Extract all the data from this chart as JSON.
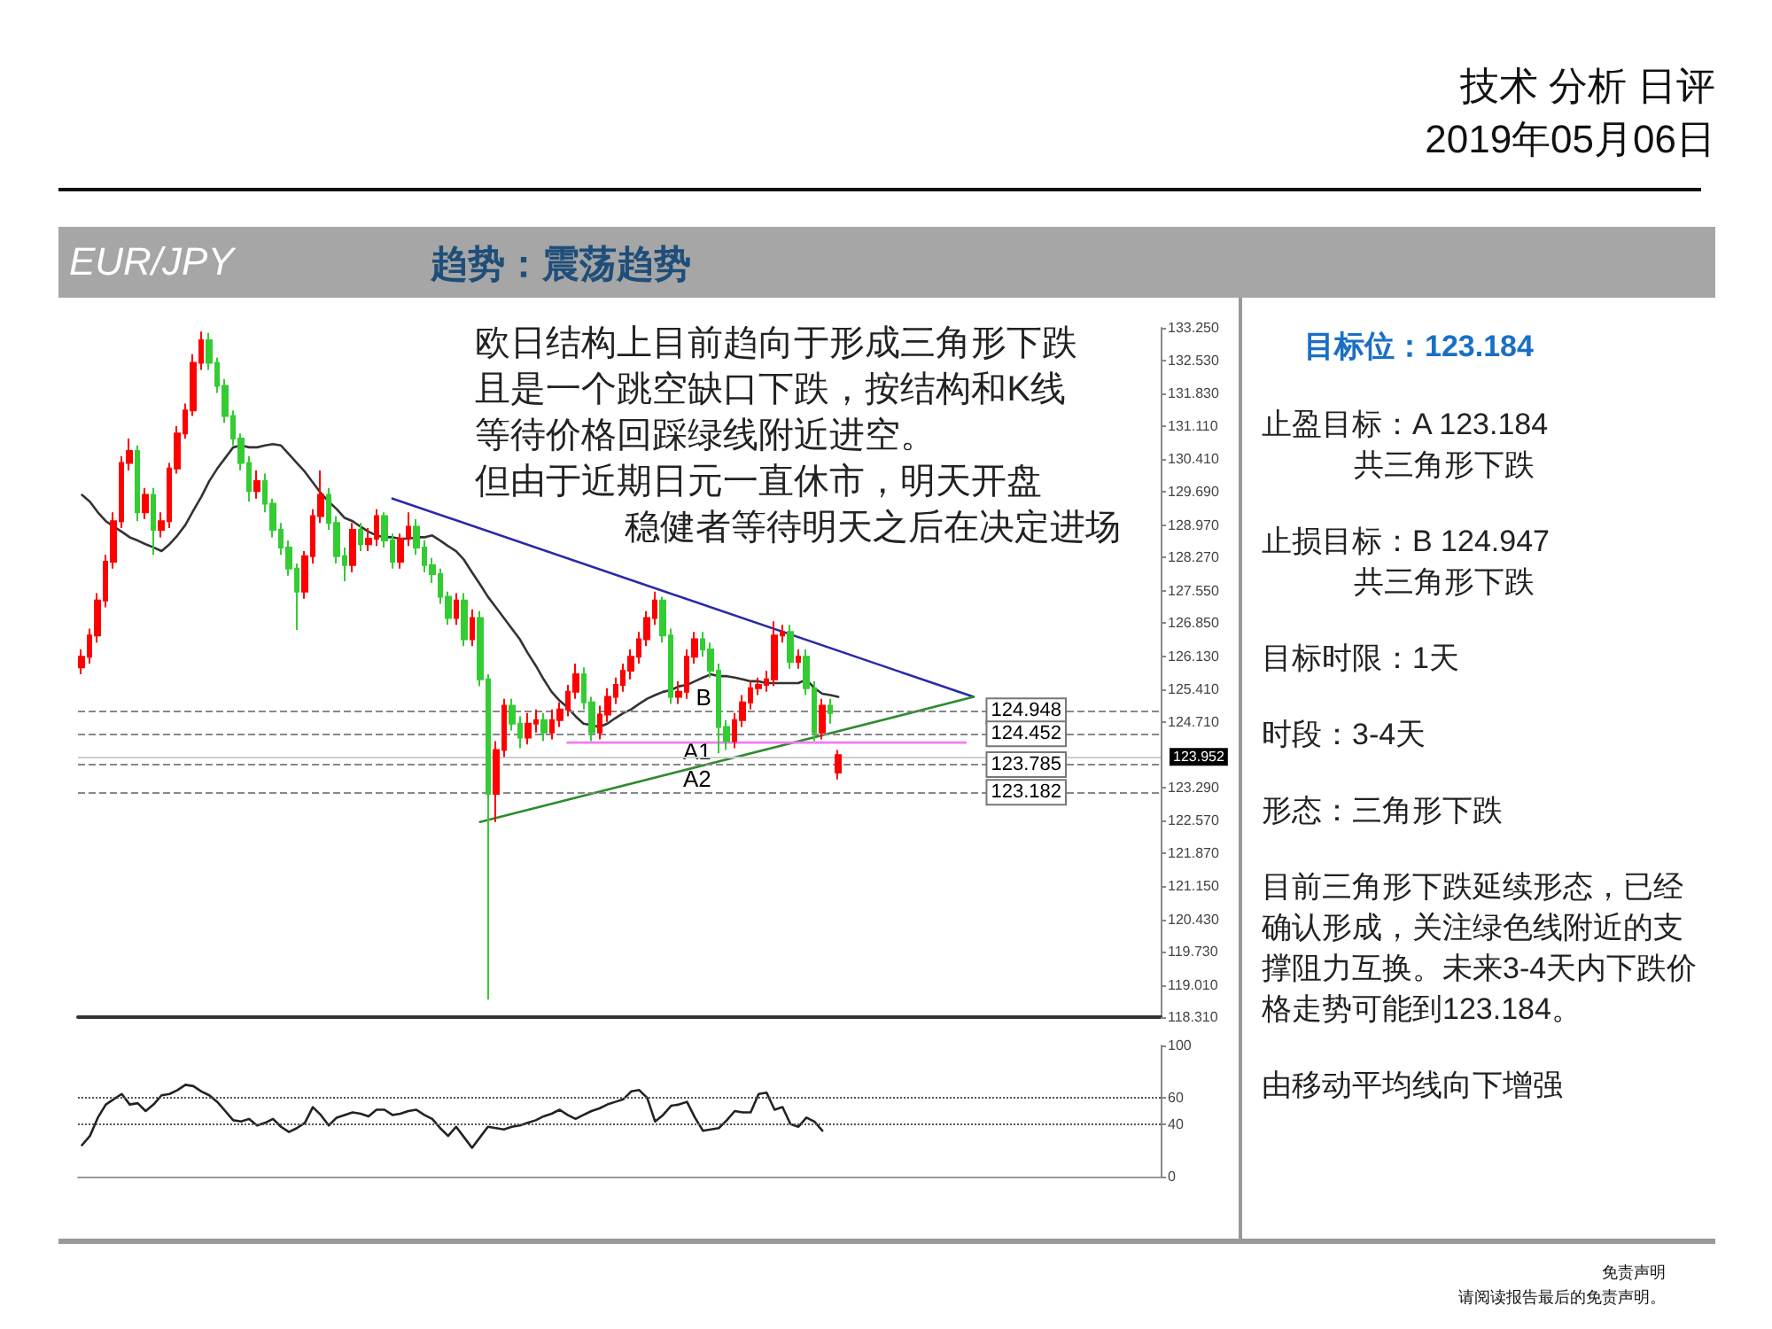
{
  "chart_data": [
    {
      "type": "candlestick",
      "title": "EUR/JPY",
      "subtitle": "趋势：震荡趋势",
      "categories": [
        null,
        null,
        null,
        null,
        null,
        null,
        null,
        null,
        null,
        null,
        null,
        null,
        null,
        null,
        null,
        null,
        null,
        null,
        null,
        null,
        null,
        null,
        null,
        null,
        null,
        null,
        null,
        null,
        null,
        null,
        null,
        null,
        null,
        null,
        null,
        null,
        null,
        null,
        null,
        null,
        null,
        null,
        null,
        null,
        null,
        null,
        null,
        null,
        null,
        null,
        null,
        null,
        null,
        null,
        null,
        null,
        null,
        null,
        null,
        null,
        null,
        null,
        null,
        null,
        null,
        null,
        null,
        null,
        null,
        null,
        null,
        null,
        null,
        null,
        null,
        null,
        null,
        null,
        null,
        null,
        null,
        null,
        null,
        null,
        null,
        null,
        null,
        null,
        null,
        null,
        null,
        null,
        null,
        null,
        null,
        null,
        null,
        null,
        null,
        null,
        null,
        null,
        null,
        null,
        null,
        null,
        null,
        null,
        null,
        null,
        null,
        null,
        null,
        null,
        null,
        null,
        null,
        null,
        null,
        null,
        null,
        null,
        null,
        null,
        null,
        null,
        null,
        null,
        null,
        null,
        null,
        null,
        null,
        null,
        null,
        null
      ],
      "ohlc": [
        [
          125.89,
          126.28,
          125.74,
          126.12
        ],
        [
          126.12,
          126.73,
          125.97,
          126.58
        ],
        [
          126.58,
          127.5,
          126.43,
          127.34
        ],
        [
          127.34,
          128.33,
          127.19,
          128.18
        ],
        [
          128.18,
          129.25,
          128.03,
          129.06
        ],
        [
          129.06,
          130.47,
          128.91,
          130.32
        ],
        [
          130.32,
          130.85,
          130.16,
          130.58
        ],
        [
          130.58,
          130.7,
          129.06,
          129.25
        ],
        [
          129.25,
          129.78,
          129.1,
          129.63
        ],
        [
          129.63,
          129.78,
          128.33,
          128.87
        ],
        [
          128.87,
          129.25,
          128.71,
          129.06
        ],
        [
          129.06,
          130.32,
          128.91,
          130.2
        ],
        [
          130.2,
          131.12,
          130.09,
          130.96
        ],
        [
          130.96,
          131.61,
          130.85,
          131.46
        ],
        [
          131.46,
          132.68,
          131.34,
          132.49
        ],
        [
          132.49,
          133.17,
          132.34,
          132.98
        ],
        [
          132.98,
          133.14,
          132.34,
          132.49
        ],
        [
          132.49,
          132.6,
          131.84,
          131.99
        ],
        [
          131.99,
          132.14,
          131.19,
          131.34
        ],
        [
          131.34,
          131.46,
          130.7,
          130.85
        ],
        [
          130.85,
          130.96,
          130.16,
          130.32
        ],
        [
          130.32,
          130.47,
          129.48,
          129.71
        ],
        [
          129.71,
          130.16,
          129.55,
          129.93
        ],
        [
          129.93,
          130.09,
          129.25,
          129.44
        ],
        [
          129.44,
          129.55,
          128.71,
          128.87
        ],
        [
          128.87,
          129.02,
          128.33,
          128.49
        ],
        [
          128.49,
          128.64,
          127.88,
          128.03
        ],
        [
          128.03,
          128.14,
          126.7,
          127.53
        ],
        [
          127.53,
          128.41,
          127.38,
          128.3
        ],
        [
          128.3,
          129.32,
          128.14,
          129.17
        ],
        [
          129.17,
          130.16,
          129.02,
          129.63
        ],
        [
          129.63,
          129.78,
          128.87,
          129.02
        ],
        [
          129.02,
          129.17,
          128.14,
          128.3
        ],
        [
          128.3,
          128.49,
          127.76,
          128.11
        ],
        [
          128.11,
          129.02,
          127.95,
          128.87
        ],
        [
          128.87,
          129.02,
          128.41,
          128.56
        ],
        [
          128.56,
          128.91,
          128.41,
          128.68
        ],
        [
          128.68,
          129.32,
          128.52,
          129.17
        ],
        [
          129.17,
          129.25,
          128.49,
          128.64
        ],
        [
          128.64,
          128.79,
          128.03,
          128.18
        ],
        [
          128.18,
          128.79,
          128.03,
          128.68
        ],
        [
          128.68,
          129.25,
          128.52,
          128.94
        ],
        [
          128.94,
          129.1,
          128.33,
          128.49
        ],
        [
          128.49,
          128.64,
          127.95,
          128.11
        ],
        [
          128.11,
          128.26,
          127.72,
          127.91
        ],
        [
          127.91,
          128.03,
          127.27,
          127.42
        ],
        [
          127.42,
          127.53,
          126.81,
          126.96
        ],
        [
          126.96,
          127.5,
          126.81,
          127.34
        ],
        [
          127.34,
          127.5,
          126.35,
          126.5
        ],
        [
          126.5,
          127.15,
          126.35,
          126.96
        ],
        [
          126.96,
          127.11,
          125.48,
          125.63
        ],
        [
          125.63,
          125.74,
          118.69,
          123.15
        ],
        [
          123.15,
          124.29,
          122.54,
          124.1
        ],
        [
          124.1,
          125.21,
          123.95,
          125.06
        ],
        [
          125.06,
          125.21,
          124.52,
          124.67
        ],
        [
          124.67,
          124.83,
          124.14,
          124.37
        ],
        [
          124.37,
          124.9,
          124.22,
          124.67
        ],
        [
          124.67,
          124.98,
          124.48,
          124.75
        ],
        [
          124.75,
          124.9,
          124.29,
          124.48
        ],
        [
          124.48,
          124.98,
          124.33,
          124.75
        ],
        [
          124.75,
          125.13,
          124.6,
          124.98
        ],
        [
          124.98,
          125.51,
          124.83,
          125.36
        ],
        [
          125.36,
          125.97,
          125.21,
          125.74
        ],
        [
          125.74,
          125.89,
          124.98,
          125.13
        ],
        [
          125.13,
          125.25,
          124.29,
          124.48
        ],
        [
          124.48,
          125.06,
          124.33,
          124.87
        ],
        [
          124.87,
          125.44,
          124.71,
          125.25
        ],
        [
          125.25,
          125.67,
          125.1,
          125.51
        ],
        [
          125.51,
          125.97,
          125.36,
          125.82
        ],
        [
          125.82,
          126.28,
          125.63,
          126.12
        ],
        [
          126.12,
          126.66,
          125.97,
          126.5
        ],
        [
          126.5,
          127.11,
          126.35,
          126.96
        ],
        [
          126.96,
          127.53,
          126.81,
          127.34
        ],
        [
          127.34,
          127.42,
          126.43,
          126.58
        ],
        [
          126.58,
          126.73,
          125.1,
          125.25
        ],
        [
          125.25,
          125.59,
          125.1,
          125.36
        ],
        [
          125.36,
          126.28,
          125.21,
          126.12
        ],
        [
          126.12,
          126.66,
          125.97,
          126.5
        ],
        [
          126.5,
          126.66,
          126.12,
          126.28
        ],
        [
          126.28,
          126.43,
          125.67,
          125.82
        ],
        [
          125.82,
          125.97,
          124.03,
          124.6
        ],
        [
          124.6,
          124.75,
          124.1,
          124.29
        ],
        [
          124.29,
          124.9,
          124.14,
          124.75
        ],
        [
          124.75,
          125.29,
          124.6,
          125.13
        ],
        [
          125.13,
          125.59,
          124.98,
          125.44
        ],
        [
          125.44,
          125.67,
          125.29,
          125.51
        ],
        [
          125.51,
          125.82,
          125.36,
          125.63
        ],
        [
          125.63,
          126.89,
          125.48,
          126.58
        ],
        [
          126.58,
          126.81,
          126.43,
          126.66
        ],
        [
          126.66,
          126.81,
          125.86,
          126.01
        ],
        [
          126.01,
          126.28,
          125.86,
          126.12
        ],
        [
          126.12,
          126.28,
          125.29,
          125.44
        ],
        [
          125.44,
          125.59,
          124.29,
          124.48
        ],
        [
          124.48,
          125.21,
          124.33,
          125.06
        ],
        [
          125.06,
          125.21,
          124.67,
          124.9
        ],
        [
          123.61,
          124.1,
          123.46,
          123.99
        ],
        null,
        null,
        null,
        null,
        null,
        null,
        null,
        null,
        null,
        null,
        null,
        null,
        null,
        null,
        null,
        null,
        null,
        null,
        null,
        null,
        null,
        null,
        null,
        null,
        null,
        null,
        null,
        null,
        null,
        null,
        null,
        null,
        null,
        null,
        null,
        null,
        null,
        null,
        null,
        null
      ],
      "colors": [
        "#ff0000",
        "#ff0000",
        "#ff0000",
        "#ff0000",
        "#ff0000",
        "#ff0000",
        "#ff0000",
        "#33cc33",
        "#ff0000",
        "#33cc33",
        "#ff0000",
        "#ff0000",
        "#ff0000",
        "#ff0000",
        "#ff0000",
        "#ff0000",
        "#33cc33",
        "#33cc33",
        "#33cc33",
        "#33cc33",
        "#33cc33",
        "#33cc33",
        "#ff0000",
        "#33cc33",
        "#33cc33",
        "#33cc33",
        "#33cc33",
        "#33cc33",
        "#ff0000",
        "#ff0000",
        "#ff0000",
        "#33cc33",
        "#33cc33",
        "#33cc33",
        "#ff0000",
        "#33cc33",
        "#ff0000",
        "#ff0000",
        "#33cc33",
        "#33cc33",
        "#ff0000",
        "#ff0000",
        "#33cc33",
        "#33cc33",
        "#33cc33",
        "#33cc33",
        "#33cc33",
        "#ff0000",
        "#33cc33",
        "#ff0000",
        "#33cc33",
        "#33cc33",
        "#ff0000",
        "#ff0000",
        "#33cc33",
        "#33cc33",
        "#ff0000",
        "#ff0000",
        "#33cc33",
        "#ff0000",
        "#ff0000",
        "#ff0000",
        "#ff0000",
        "#33cc33",
        "#33cc33",
        "#ff0000",
        "#ff0000",
        "#ff0000",
        "#ff0000",
        "#ff0000",
        "#ff0000",
        "#ff0000",
        "#ff0000",
        "#33cc33",
        "#33cc33",
        "#ff0000",
        "#ff0000",
        "#ff0000",
        "#33cc33",
        "#33cc33",
        "#33cc33",
        "#33cc33",
        "#ff0000",
        "#ff0000",
        "#ff0000",
        "#ff0000",
        "#ff0000",
        "#ff0000",
        "#ff0000",
        "#33cc33",
        "#ff0000",
        "#33cc33",
        "#33cc33",
        "#ff0000",
        "#33cc33",
        "#ff0000",
        null,
        null,
        null,
        null,
        null,
        null,
        null,
        null,
        null,
        null,
        null,
        null,
        null,
        null,
        null,
        null,
        null,
        null,
        null,
        null,
        null,
        null,
        null,
        null,
        null,
        null,
        null,
        null,
        null,
        null,
        null,
        null,
        null,
        null,
        null,
        null,
        null,
        null,
        null,
        null
      ],
      "series": [
        {
          "type": "line",
          "color": "#333333",
          "values": [
            129.63,
            129.48,
            129.25,
            129.06,
            128.94,
            128.83,
            128.71,
            128.64,
            128.56,
            128.49,
            128.41,
            128.56,
            128.75,
            128.98,
            129.29,
            129.59,
            129.93,
            130.2,
            130.43,
            130.66,
            130.7,
            130.66,
            130.66,
            130.7,
            130.73,
            130.7,
            130.51,
            130.32,
            130.13,
            129.9,
            129.67,
            129.48,
            129.32,
            129.13,
            129.06,
            128.94,
            128.83,
            128.75,
            128.71,
            128.71,
            128.68,
            128.68,
            128.71,
            128.71,
            128.75,
            128.64,
            128.52,
            128.41,
            128.22,
            127.95,
            127.69,
            127.42,
            127.19,
            126.96,
            126.73,
            126.5,
            126.2,
            125.93,
            125.63,
            125.36,
            125.17,
            125.02,
            124.83,
            124.67,
            124.64,
            124.6,
            124.67,
            124.79,
            124.9,
            124.98,
            125.1,
            125.21,
            125.29,
            125.36,
            125.4,
            125.48,
            125.51,
            125.59,
            125.67,
            125.74,
            125.7,
            125.7,
            125.67,
            125.63,
            125.59,
            125.59,
            125.55,
            125.55,
            125.55,
            125.55,
            125.55,
            125.63,
            125.44,
            125.32,
            125.29,
            125.25,
            null,
            null,
            null,
            null,
            null,
            null,
            null,
            null,
            null,
            null,
            null,
            null,
            null,
            null,
            null,
            null,
            null,
            null,
            null,
            null,
            null,
            null,
            null,
            null,
            null,
            null,
            null,
            null,
            null,
            null,
            null,
            null,
            null,
            null,
            null,
            null,
            null,
            null,
            null,
            null
          ]
        },
        {
          "type": "line",
          "color": "#2a2aa8",
          "values": [
            null,
            null,
            null,
            null,
            null,
            null,
            null,
            null,
            null,
            null,
            null,
            null,
            null,
            null,
            null,
            null,
            null,
            null,
            null,
            null,
            null,
            null,
            null,
            null,
            null,
            null,
            null,
            null,
            null,
            null,
            null,
            null,
            null,
            null,
            null,
            null,
            null,
            null,
            null,
            129.55,
            null,
            null,
            null,
            null,
            null,
            null,
            null,
            null,
            null,
            null,
            null,
            null,
            null,
            null,
            null,
            null,
            null,
            null,
            null,
            null,
            null,
            null,
            null,
            null,
            null,
            null,
            null,
            null,
            null,
            null,
            null,
            null,
            null,
            null,
            null,
            null,
            null,
            null,
            null,
            null,
            null,
            null,
            null,
            null,
            null,
            null,
            null,
            null,
            null,
            null,
            null,
            null,
            null,
            null,
            null,
            null,
            null,
            null,
            null,
            null,
            null,
            null,
            null,
            null,
            null,
            null,
            null,
            null,
            null,
            null,
            null,
            null,
            125.25,
            null,
            null,
            null,
            null,
            null,
            null,
            null,
            null,
            null,
            null,
            null,
            null,
            null,
            null,
            null,
            null,
            null,
            null,
            null,
            null,
            null,
            null,
            null
          ]
        },
        {
          "type": "line",
          "color": "#2e8b2e",
          "values": [
            null,
            null,
            null,
            null,
            null,
            null,
            null,
            null,
            null,
            null,
            null,
            null,
            null,
            null,
            null,
            null,
            null,
            null,
            null,
            null,
            null,
            null,
            null,
            null,
            null,
            null,
            null,
            null,
            null,
            null,
            null,
            null,
            null,
            null,
            null,
            null,
            null,
            null,
            null,
            null,
            null,
            null,
            null,
            null,
            null,
            null,
            null,
            null,
            null,
            null,
            122.54,
            null,
            null,
            null,
            null,
            null,
            null,
            null,
            null,
            null,
            null,
            null,
            null,
            null,
            null,
            null,
            null,
            null,
            null,
            null,
            null,
            null,
            null,
            null,
            null,
            null,
            null,
            null,
            null,
            null,
            null,
            null,
            null,
            null,
            null,
            null,
            null,
            null,
            null,
            null,
            null,
            null,
            null,
            null,
            null,
            null,
            null,
            null,
            null,
            null,
            null,
            null,
            null,
            null,
            null,
            null,
            null,
            null,
            null,
            null,
            null,
            null,
            125.25,
            null,
            null,
            null,
            null,
            null,
            null,
            null,
            null,
            null,
            null,
            null,
            null,
            null,
            null,
            null,
            null,
            null,
            null,
            null,
            null,
            null,
            null,
            null
          ]
        },
        {
          "type": "line",
          "color": "#f07cf0",
          "values": [
            null,
            null,
            null,
            null,
            null,
            null,
            null,
            null,
            null,
            null,
            null,
            null,
            null,
            null,
            null,
            null,
            null,
            null,
            null,
            null,
            null,
            null,
            null,
            null,
            null,
            null,
            null,
            null,
            null,
            null,
            null,
            null,
            null,
            null,
            null,
            null,
            null,
            null,
            null,
            null,
            null,
            null,
            null,
            null,
            null,
            null,
            null,
            null,
            null,
            null,
            null,
            null,
            null,
            null,
            null,
            null,
            null,
            null,
            null,
            null,
            null,
            124.26,
            null,
            null,
            null,
            null,
            null,
            null,
            null,
            null,
            null,
            null,
            null,
            null,
            null,
            null,
            null,
            null,
            null,
            null,
            null,
            null,
            null,
            null,
            null,
            null,
            null,
            null,
            null,
            null,
            null,
            null,
            null,
            null,
            null,
            null,
            null,
            null,
            null,
            null,
            null,
            null,
            null,
            null,
            null,
            null,
            null,
            null,
            null,
            null,
            null,
            124.26,
            null,
            null,
            null,
            null,
            null,
            null,
            null,
            null,
            null,
            null,
            null,
            null,
            null,
            null,
            null,
            null,
            null,
            null,
            null,
            null,
            null,
            null,
            null,
            null
          ]
        }
      ],
      "ylim": [
        118.31,
        133.25
      ],
      "yticks": [
        {
          "value": 133.25,
          "label": "133.250"
        },
        {
          "value": 132.53,
          "label": "132.530"
        },
        {
          "value": 131.83,
          "label": "131.830"
        },
        {
          "value": 131.11,
          "label": "131.110"
        },
        {
          "value": 130.41,
          "label": "130.410"
        },
        {
          "value": 129.69,
          "label": "129.690"
        },
        {
          "value": 128.97,
          "label": "128.970"
        },
        {
          "value": 128.27,
          "label": "128.270"
        },
        {
          "value": 127.55,
          "label": "127.550"
        },
        {
          "value": 126.85,
          "label": "126.850"
        },
        {
          "value": 126.13,
          "label": "126.130"
        },
        {
          "value": 125.41,
          "label": "125.410"
        },
        {
          "value": 124.71,
          "label": "124.710"
        },
        {
          "value": 123.29,
          "label": "123.290"
        },
        {
          "value": 122.57,
          "label": "122.570"
        },
        {
          "value": 121.87,
          "label": "121.870"
        },
        {
          "value": 121.15,
          "label": "121.150"
        },
        {
          "value": 120.43,
          "label": "120.430"
        },
        {
          "value": 119.73,
          "label": "119.730"
        },
        {
          "value": 119.01,
          "label": "119.010"
        },
        {
          "value": 118.31,
          "label": "118.310"
        }
      ],
      "ref_lines": [
        {
          "axis": "y",
          "value": 123.952,
          "label": "123.952",
          "color": "#cccccc"
        },
        {
          "axis": "y",
          "value": 124.948,
          "label": "124.948",
          "color": "#888888",
          "line_style": "dashed"
        },
        {
          "axis": "y",
          "value": 124.452,
          "label": "124.452",
          "color": "#888888",
          "line_style": "dashed"
        },
        {
          "axis": "y",
          "value": 123.785,
          "label": "123.785",
          "color": "#888888",
          "line_style": "dashed"
        },
        {
          "axis": "y",
          "value": 123.182,
          "label": "123.182",
          "color": "#888888",
          "line_style": "dashed"
        }
      ],
      "annotations": [
        "技术 分析 日评",
        "2019年05月06日",
        "欧日结构上目前趋向于形成三角形下跌",
        "且是一个跳空缺口下跌，按结构和K线",
        "等待价格回踩绿线附近进空。",
        "但由于近期日元一直休市，明天开盘",
        "稳健者等待明天之后在决定进场",
        {
          "text": "B",
          "y": 124.948
        },
        {
          "text": "A1",
          "y": 123.785
        },
        {
          "text": "A2",
          "y": 123.182
        },
        "免责声明",
        "请阅读报告最后的免责声明。"
      ]
    },
    {
      "type": "line",
      "categories": [
        null,
        null,
        null,
        null,
        null,
        null,
        null,
        null,
        null,
        null,
        null,
        null,
        null,
        null,
        null,
        null,
        null,
        null,
        null,
        null,
        null,
        null,
        null,
        null,
        null,
        null,
        null,
        null,
        null,
        null,
        null,
        null,
        null,
        null,
        null,
        null,
        null,
        null,
        null,
        null,
        null,
        null,
        null,
        null,
        null,
        null,
        null,
        null,
        null,
        null,
        null,
        null,
        null,
        null,
        null,
        null,
        null,
        null,
        null,
        null,
        null,
        null,
        null,
        null,
        null,
        null,
        null,
        null,
        null,
        null,
        null,
        null,
        null,
        null,
        null,
        null,
        null,
        null,
        null,
        null,
        null,
        null,
        null,
        null,
        null,
        null,
        null,
        null,
        null,
        null,
        null,
        null,
        null,
        null,
        null,
        null,
        null,
        null,
        null,
        null,
        null,
        null,
        null,
        null,
        null,
        null,
        null,
        null,
        null,
        null,
        null,
        null,
        null,
        null,
        null,
        null,
        null,
        null,
        null,
        null,
        null,
        null,
        null,
        null,
        null,
        null,
        null,
        null,
        null,
        null,
        null,
        null,
        null,
        null,
        null,
        null
      ],
      "color": "#222222",
      "values": [
        24,
        31,
        45,
        55,
        59,
        63,
        55,
        56,
        50,
        55,
        62,
        63,
        66,
        70,
        69,
        65,
        62,
        57,
        50,
        43,
        42,
        44,
        39,
        41,
        44,
        38,
        34,
        37,
        41,
        53,
        47,
        39,
        45,
        47,
        49,
        48,
        46,
        51,
        51,
        47,
        48,
        50,
        51,
        47,
        44,
        37,
        31,
        38,
        30,
        22,
        30,
        38,
        37,
        36,
        38,
        39,
        41,
        43,
        46,
        48,
        51,
        47,
        44,
        47,
        50,
        52,
        55,
        57,
        59,
        65,
        66,
        60,
        42,
        47,
        54,
        55,
        57,
        45,
        35,
        36,
        37,
        43,
        50,
        49,
        49,
        63,
        64,
        51,
        53,
        40,
        38,
        45,
        42,
        35,
        null,
        null,
        null,
        null,
        null,
        null,
        null,
        null,
        null,
        null,
        null,
        null,
        null,
        null,
        null,
        null,
        null,
        null,
        null,
        null,
        null,
        null,
        null,
        null,
        null,
        null,
        null,
        null,
        null,
        null,
        null,
        null,
        null,
        null,
        null,
        null,
        null,
        null,
        null,
        null,
        null,
        null
      ],
      "ylim": [
        0,
        100
      ],
      "yticks": [
        0,
        40,
        60,
        100
      ],
      "ref_lines": [
        {
          "axis": "y",
          "value": 40,
          "color": "#555555",
          "line_style": "dotted"
        },
        {
          "axis": "y",
          "value": 60,
          "color": "#555555",
          "line_style": "dotted"
        }
      ]
    },
    {
      "type": "other",
      "title": "目标位：123.184",
      "annotations": [
        "止盈目标：A 123.184\n共三角形下跌",
        "止损目标：B 124.947\n共三角形下跌",
        "目标时限：1天",
        "时段：3-4天",
        "形态：三角形下跌",
        "目前三角形下跌延续形态，已经确认形成，关注绿色线附近的支撑阻力互换。未来3-4天内下跌价格走势可能到123.184。",
        "由移动平均线向下增强"
      ]
    }
  ]
}
